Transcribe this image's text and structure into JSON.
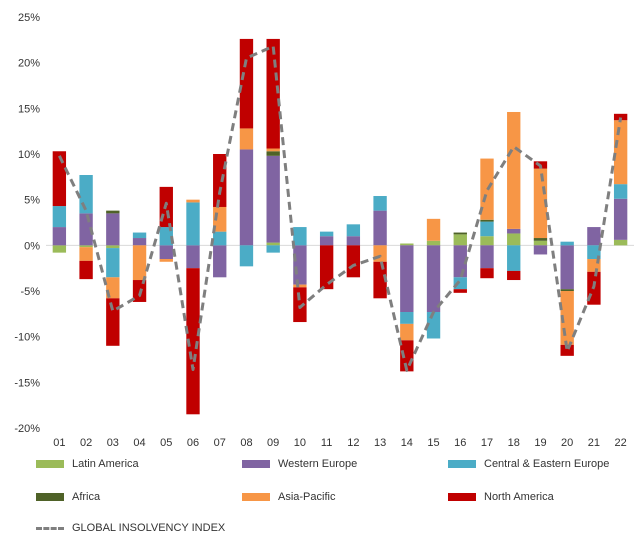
{
  "chart_data": {
    "type": "bar",
    "stacked": true,
    "categories": [
      "01",
      "02",
      "03",
      "04",
      "05",
      "06",
      "07",
      "08",
      "09",
      "10",
      "11",
      "12",
      "13",
      "14",
      "15",
      "16",
      "17",
      "18",
      "19",
      "20",
      "21",
      "22"
    ],
    "yticks": [
      "25%",
      "20%",
      "15%",
      "10%",
      "5%",
      "0%",
      "-5%",
      "-10%",
      "-15%",
      "-20%"
    ],
    "ylim": [
      -20,
      25
    ],
    "grid": false,
    "legend_position": "bottom",
    "series": [
      {
        "name": "Latin America",
        "color": "#9bbb59",
        "values": [
          -0.8,
          -0.2,
          -0.3,
          0,
          0,
          0,
          0,
          0,
          0.3,
          0,
          0,
          0,
          0,
          0.2,
          0.5,
          1.2,
          1.0,
          1.3,
          0.5,
          0,
          0,
          0.6
        ]
      },
      {
        "name": "Western Europe",
        "color": "#8064a2",
        "values": [
          2.0,
          3.5,
          3.5,
          0.8,
          -1.5,
          -2.5,
          -3.5,
          10.5,
          9.5,
          -4.3,
          1.0,
          1.0,
          3.8,
          -7.3,
          -7.3,
          -3.5,
          -2.5,
          0.5,
          -1.0,
          -4.8,
          2.0,
          4.5
        ]
      },
      {
        "name": "Central & Eastern Europe",
        "color": "#4bacc6",
        "values": [
          2.3,
          4.2,
          -3.2,
          0.6,
          2.0,
          4.7,
          1.5,
          -2.3,
          -0.8,
          2.0,
          0.5,
          1.3,
          1.6,
          -1.3,
          -2.9,
          -1.3,
          1.6,
          -2.8,
          0,
          0.4,
          -1.5,
          1.6
        ]
      },
      {
        "name": "Africa",
        "color": "#4f6228",
        "values": [
          0,
          0,
          0.3,
          0,
          0,
          0,
          0,
          0,
          0.5,
          0,
          0,
          0,
          0,
          0,
          0,
          0.2,
          0.2,
          0,
          0.3,
          -0.2,
          0,
          0
        ]
      },
      {
        "name": "Asia-Pacific",
        "color": "#f79646",
        "values": [
          0,
          -1.5,
          -2.3,
          -3.8,
          -0.3,
          0.3,
          2.7,
          2.3,
          0.3,
          -0.3,
          0,
          0,
          -1.8,
          -1.8,
          2.4,
          0,
          6.7,
          12.8,
          7.6,
          -5.9,
          -1.4,
          7.0
        ]
      },
      {
        "name": "North America",
        "color": "#c00000",
        "values": [
          6.0,
          -2.0,
          -5.2,
          -2.4,
          4.4,
          -16.0,
          5.8,
          9.8,
          12.0,
          -3.8,
          -4.8,
          -3.5,
          -4.0,
          -3.4,
          0,
          -0.4,
          -1.1,
          -1.0,
          0.8,
          -1.2,
          -3.6,
          0.7
        ]
      }
    ],
    "line": {
      "name": "GLOBAL INSOLVENCY INDEX",
      "color": "#7f7f7f",
      "values": [
        9.8,
        3.8,
        -7.2,
        -5.5,
        4.6,
        -13.6,
        5.8,
        20.5,
        21.8,
        -6.8,
        -4.3,
        -2.2,
        -1.2,
        -13.7,
        -7.3,
        -3.8,
        6.0,
        10.8,
        8.7,
        -11.6,
        -4.5,
        14.0
      ]
    }
  }
}
